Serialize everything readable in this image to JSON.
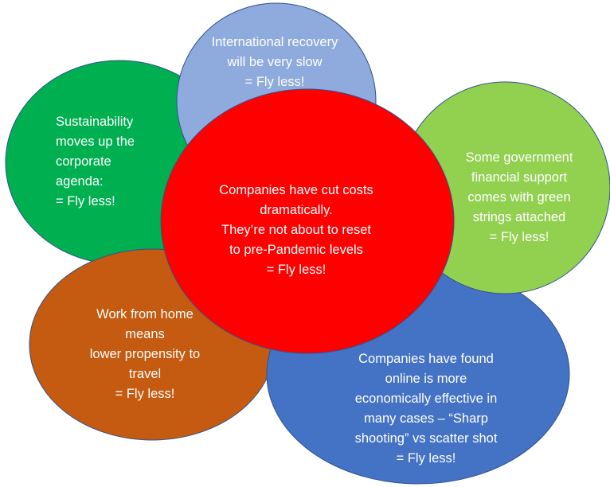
{
  "bubbles": [
    {
      "id": "sustainability",
      "color": "#00b050",
      "lines": [
        "Sustainability",
        "moves up the",
        "corporate",
        "agenda:",
        "= Fly less!"
      ]
    },
    {
      "id": "international",
      "color": "#8faadc",
      "lines": [
        "International recovery",
        "will be very slow",
        "= Fly less!"
      ]
    },
    {
      "id": "work-from-home",
      "color": "#c55a11",
      "lines": [
        "Work from home",
        "means",
        "lower propensity to",
        "travel",
        "= Fly less!"
      ]
    },
    {
      "id": "online",
      "color": "#4472c4",
      "lines": [
        "Companies have found",
        "online is more",
        "economically effective in",
        "many cases – “Sharp",
        "shooting” vs scatter shot",
        "= Fly less!"
      ]
    },
    {
      "id": "government",
      "color": "#92d050",
      "lines": [
        "Some government",
        "financial support",
        "comes with green",
        "strings attached",
        "= Fly less!"
      ]
    },
    {
      "id": "cut-costs",
      "color": "#ff0000",
      "lines": [
        "Companies have cut costs",
        "dramatically.",
        "They’re not about to reset",
        "to pre-Pandemic levels",
        "= Fly less!"
      ]
    }
  ]
}
